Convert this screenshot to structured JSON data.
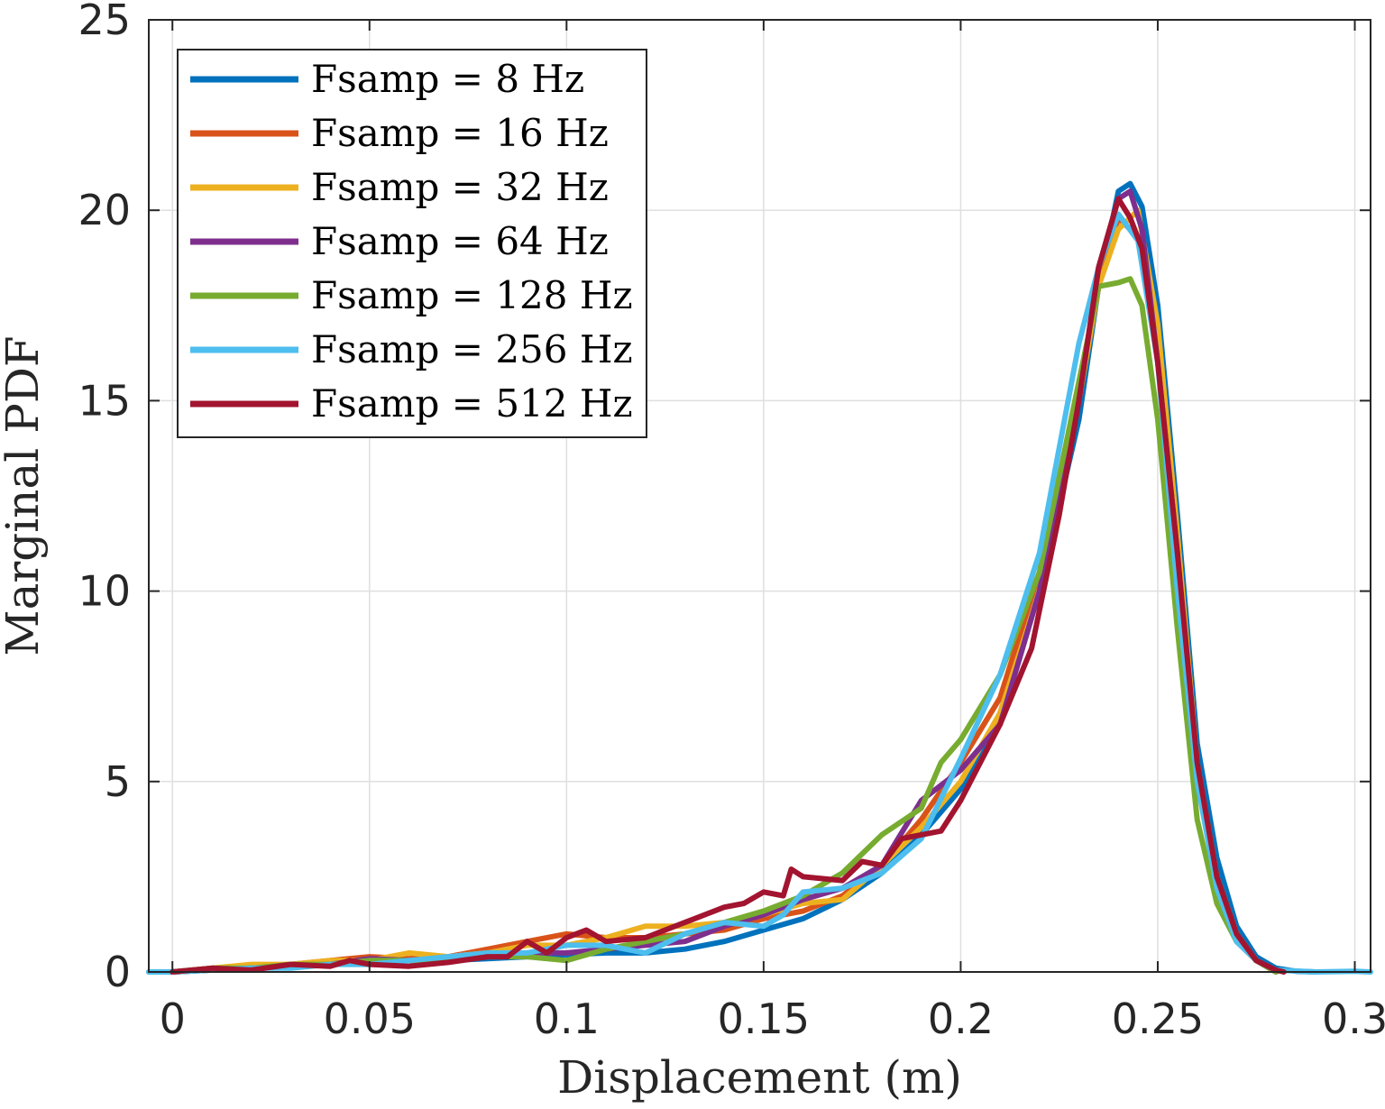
{
  "chart_data": {
    "type": "line",
    "title": "",
    "xlabel": "Displacement (m)",
    "ylabel": "Marginal PDF",
    "xlim": [
      -0.006,
      0.304
    ],
    "ylim": [
      0,
      25
    ],
    "xticks": [
      0,
      0.05,
      0.1,
      0.15,
      0.2,
      0.25,
      0.3
    ],
    "xtick_labels": [
      "0",
      "0.05",
      "0.1",
      "0.15",
      "0.2",
      "0.25",
      "0.3"
    ],
    "yticks": [
      0,
      5,
      10,
      15,
      20,
      25
    ],
    "ytick_labels": [
      "0",
      "5",
      "10",
      "15",
      "20",
      "25"
    ],
    "grid": true,
    "legend_position": "top-left",
    "series": [
      {
        "name": "Fsamp = 8 Hz",
        "color": "#0072BD",
        "points": [
          [
            -0.006,
            0
          ],
          [
            0,
            0
          ],
          [
            0.01,
            0.05
          ],
          [
            0.02,
            0.1
          ],
          [
            0.03,
            0.15
          ],
          [
            0.04,
            0.2
          ],
          [
            0.05,
            0.25
          ],
          [
            0.06,
            0.3
          ],
          [
            0.07,
            0.3
          ],
          [
            0.08,
            0.35
          ],
          [
            0.09,
            0.4
          ],
          [
            0.1,
            0.45
          ],
          [
            0.11,
            0.5
          ],
          [
            0.12,
            0.5
          ],
          [
            0.13,
            0.6
          ],
          [
            0.14,
            0.8
          ],
          [
            0.15,
            1.1
          ],
          [
            0.16,
            1.4
          ],
          [
            0.17,
            1.9
          ],
          [
            0.18,
            2.6
          ],
          [
            0.19,
            3.6
          ],
          [
            0.2,
            4.8
          ],
          [
            0.21,
            6.8
          ],
          [
            0.22,
            10
          ],
          [
            0.23,
            14.5
          ],
          [
            0.235,
            18
          ],
          [
            0.24,
            20.5
          ],
          [
            0.243,
            20.7
          ],
          [
            0.246,
            20.1
          ],
          [
            0.25,
            17.5
          ],
          [
            0.255,
            12
          ],
          [
            0.26,
            6
          ],
          [
            0.265,
            3
          ],
          [
            0.27,
            1.2
          ],
          [
            0.275,
            0.4
          ],
          [
            0.28,
            0.1
          ],
          [
            0.285,
            0.02
          ],
          [
            0.29,
            0
          ]
        ]
      },
      {
        "name": "Fsamp = 16 Hz",
        "color": "#D95319",
        "points": [
          [
            0,
            0
          ],
          [
            0.01,
            0.1
          ],
          [
            0.02,
            0.15
          ],
          [
            0.03,
            0.2
          ],
          [
            0.04,
            0.3
          ],
          [
            0.05,
            0.4
          ],
          [
            0.06,
            0.35
          ],
          [
            0.07,
            0.4
          ],
          [
            0.08,
            0.6
          ],
          [
            0.09,
            0.8
          ],
          [
            0.1,
            1.0
          ],
          [
            0.11,
            0.9
          ],
          [
            0.12,
            0.9
          ],
          [
            0.13,
            1.0
          ],
          [
            0.14,
            1.1
          ],
          [
            0.15,
            1.4
          ],
          [
            0.16,
            1.6
          ],
          [
            0.17,
            2.0
          ],
          [
            0.18,
            2.8
          ],
          [
            0.19,
            4.0
          ],
          [
            0.2,
            5.5
          ],
          [
            0.21,
            7.2
          ],
          [
            0.22,
            10.5
          ],
          [
            0.23,
            15
          ],
          [
            0.235,
            18
          ],
          [
            0.24,
            19.8
          ],
          [
            0.245,
            19.3
          ],
          [
            0.25,
            16.5
          ],
          [
            0.255,
            11
          ],
          [
            0.26,
            5
          ],
          [
            0.265,
            2.5
          ],
          [
            0.27,
            1.0
          ],
          [
            0.275,
            0.3
          ],
          [
            0.28,
            0
          ]
        ]
      },
      {
        "name": "Fsamp = 32 Hz",
        "color": "#EDB120",
        "points": [
          [
            0,
            0
          ],
          [
            0.01,
            0.1
          ],
          [
            0.02,
            0.2
          ],
          [
            0.03,
            0.2
          ],
          [
            0.04,
            0.3
          ],
          [
            0.05,
            0.3
          ],
          [
            0.06,
            0.5
          ],
          [
            0.07,
            0.4
          ],
          [
            0.08,
            0.5
          ],
          [
            0.09,
            0.7
          ],
          [
            0.1,
            0.7
          ],
          [
            0.11,
            0.9
          ],
          [
            0.12,
            1.2
          ],
          [
            0.13,
            1.2
          ],
          [
            0.14,
            1.3
          ],
          [
            0.15,
            1.5
          ],
          [
            0.16,
            1.8
          ],
          [
            0.17,
            1.9
          ],
          [
            0.18,
            2.8
          ],
          [
            0.19,
            3.8
          ],
          [
            0.2,
            5.0
          ],
          [
            0.21,
            6.8
          ],
          [
            0.22,
            10
          ],
          [
            0.23,
            15
          ],
          [
            0.235,
            18
          ],
          [
            0.24,
            19.5
          ],
          [
            0.245,
            20.0
          ],
          [
            0.25,
            17
          ],
          [
            0.255,
            11.5
          ],
          [
            0.26,
            5.5
          ],
          [
            0.265,
            2.5
          ],
          [
            0.27,
            1.0
          ],
          [
            0.275,
            0.3
          ],
          [
            0.28,
            0
          ]
        ]
      },
      {
        "name": "Fsamp = 64 Hz",
        "color": "#7E2F8E",
        "points": [
          [
            0,
            0
          ],
          [
            0.01,
            0.05
          ],
          [
            0.02,
            0.1
          ],
          [
            0.03,
            0.15
          ],
          [
            0.04,
            0.2
          ],
          [
            0.05,
            0.35
          ],
          [
            0.06,
            0.3
          ],
          [
            0.07,
            0.35
          ],
          [
            0.08,
            0.4
          ],
          [
            0.09,
            0.5
          ],
          [
            0.1,
            0.5
          ],
          [
            0.11,
            0.6
          ],
          [
            0.12,
            0.7
          ],
          [
            0.13,
            0.8
          ],
          [
            0.14,
            1.2
          ],
          [
            0.15,
            1.5
          ],
          [
            0.16,
            1.9
          ],
          [
            0.17,
            2.2
          ],
          [
            0.18,
            2.8
          ],
          [
            0.19,
            4.5
          ],
          [
            0.2,
            5.3
          ],
          [
            0.21,
            6.5
          ],
          [
            0.22,
            10
          ],
          [
            0.23,
            15
          ],
          [
            0.235,
            18.5
          ],
          [
            0.24,
            20.3
          ],
          [
            0.243,
            20.5
          ],
          [
            0.246,
            19.5
          ],
          [
            0.25,
            16
          ],
          [
            0.255,
            11
          ],
          [
            0.26,
            5
          ],
          [
            0.265,
            2.3
          ],
          [
            0.27,
            0.9
          ],
          [
            0.275,
            0.3
          ],
          [
            0.28,
            0
          ]
        ]
      },
      {
        "name": "Fsamp = 128 Hz",
        "color": "#77AC30",
        "points": [
          [
            0,
            0
          ],
          [
            0.01,
            0.1
          ],
          [
            0.02,
            0.1
          ],
          [
            0.03,
            0.2
          ],
          [
            0.04,
            0.2
          ],
          [
            0.05,
            0.3
          ],
          [
            0.06,
            0.3
          ],
          [
            0.07,
            0.3
          ],
          [
            0.08,
            0.4
          ],
          [
            0.09,
            0.4
          ],
          [
            0.1,
            0.3
          ],
          [
            0.11,
            0.6
          ],
          [
            0.12,
            0.8
          ],
          [
            0.13,
            1.0
          ],
          [
            0.14,
            1.3
          ],
          [
            0.15,
            1.6
          ],
          [
            0.16,
            2.0
          ],
          [
            0.17,
            2.6
          ],
          [
            0.18,
            3.6
          ],
          [
            0.19,
            4.3
          ],
          [
            0.195,
            5.5
          ],
          [
            0.2,
            6.1
          ],
          [
            0.21,
            7.8
          ],
          [
            0.22,
            10.5
          ],
          [
            0.23,
            15.5
          ],
          [
            0.235,
            18
          ],
          [
            0.24,
            18.1
          ],
          [
            0.243,
            18.2
          ],
          [
            0.246,
            17.5
          ],
          [
            0.25,
            14.5
          ],
          [
            0.255,
            9
          ],
          [
            0.26,
            4
          ],
          [
            0.265,
            1.8
          ],
          [
            0.27,
            0.8
          ],
          [
            0.275,
            0.3
          ],
          [
            0.28,
            0
          ]
        ]
      },
      {
        "name": "Fsamp = 256 Hz",
        "color": "#4DBEEE",
        "points": [
          [
            -0.006,
            0
          ],
          [
            0,
            0
          ],
          [
            0.01,
            0.05
          ],
          [
            0.02,
            0.1
          ],
          [
            0.03,
            0.1
          ],
          [
            0.04,
            0.2
          ],
          [
            0.05,
            0.2
          ],
          [
            0.06,
            0.3
          ],
          [
            0.07,
            0.4
          ],
          [
            0.08,
            0.5
          ],
          [
            0.09,
            0.5
          ],
          [
            0.1,
            0.7
          ],
          [
            0.11,
            0.7
          ],
          [
            0.12,
            0.5
          ],
          [
            0.13,
            1.0
          ],
          [
            0.14,
            1.3
          ],
          [
            0.15,
            1.2
          ],
          [
            0.155,
            1.5
          ],
          [
            0.16,
            2.1
          ],
          [
            0.17,
            2.2
          ],
          [
            0.18,
            2.6
          ],
          [
            0.19,
            3.5
          ],
          [
            0.2,
            5.6
          ],
          [
            0.21,
            7.8
          ],
          [
            0.22,
            11
          ],
          [
            0.23,
            16.5
          ],
          [
            0.235,
            18.5
          ],
          [
            0.24,
            19.9
          ],
          [
            0.245,
            19.2
          ],
          [
            0.25,
            16
          ],
          [
            0.255,
            10
          ],
          [
            0.26,
            5
          ],
          [
            0.265,
            2.2
          ],
          [
            0.27,
            0.8
          ],
          [
            0.275,
            0.3
          ],
          [
            0.28,
            0.05
          ],
          [
            0.29,
            0
          ],
          [
            0.3,
            0.02
          ],
          [
            0.304,
            0
          ]
        ]
      },
      {
        "name": "Fsamp = 512 Hz",
        "color": "#A2142F",
        "points": [
          [
            0,
            0
          ],
          [
            0.01,
            0.1
          ],
          [
            0.02,
            0.05
          ],
          [
            0.03,
            0.2
          ],
          [
            0.04,
            0.15
          ],
          [
            0.045,
            0.3
          ],
          [
            0.05,
            0.2
          ],
          [
            0.06,
            0.15
          ],
          [
            0.07,
            0.25
          ],
          [
            0.08,
            0.4
          ],
          [
            0.085,
            0.4
          ],
          [
            0.09,
            0.8
          ],
          [
            0.095,
            0.5
          ],
          [
            0.1,
            0.9
          ],
          [
            0.105,
            1.1
          ],
          [
            0.11,
            0.8
          ],
          [
            0.12,
            0.9
          ],
          [
            0.13,
            1.3
          ],
          [
            0.14,
            1.7
          ],
          [
            0.145,
            1.8
          ],
          [
            0.15,
            2.1
          ],
          [
            0.155,
            2.0
          ],
          [
            0.157,
            2.7
          ],
          [
            0.16,
            2.5
          ],
          [
            0.17,
            2.4
          ],
          [
            0.175,
            2.9
          ],
          [
            0.18,
            2.8
          ],
          [
            0.185,
            3.5
          ],
          [
            0.19,
            3.6
          ],
          [
            0.195,
            3.7
          ],
          [
            0.2,
            4.5
          ],
          [
            0.21,
            6.5
          ],
          [
            0.218,
            8.5
          ],
          [
            0.225,
            12
          ],
          [
            0.23,
            15
          ],
          [
            0.235,
            18.5
          ],
          [
            0.24,
            20.3
          ],
          [
            0.243,
            19.8
          ],
          [
            0.246,
            19
          ],
          [
            0.25,
            16
          ],
          [
            0.255,
            11
          ],
          [
            0.26,
            5.5
          ],
          [
            0.265,
            2.5
          ],
          [
            0.27,
            1.0
          ],
          [
            0.275,
            0.3
          ],
          [
            0.28,
            0.05
          ],
          [
            0.282,
            0
          ]
        ]
      }
    ]
  }
}
